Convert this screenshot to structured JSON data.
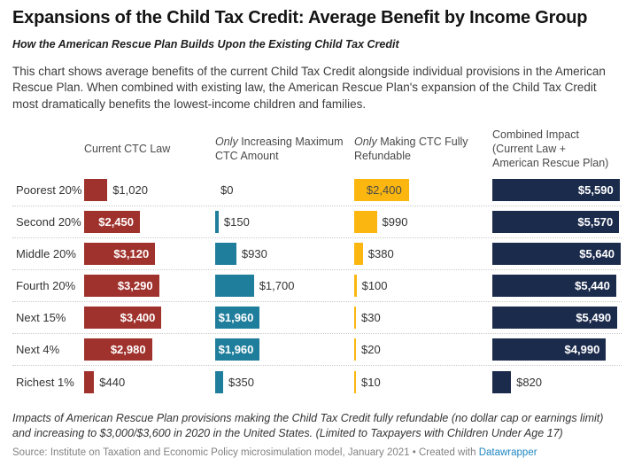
{
  "header": {
    "title": "Expansions of the Child Tax Credit: Average Benefit by Income Group",
    "subtitle": "How the American Rescue Plan Builds Upon the Existing Child Tax Credit",
    "description": "This chart shows average benefits of the current Child Tax Credit alongside individual provisions in the American Rescue Plan. When combined with existing law, the American Rescue Plan's expansion of the Child Tax Credit most dramatically benefits the lowest-income children and families."
  },
  "chart_data": {
    "type": "bar",
    "orientation": "horizontal",
    "grid": false,
    "value_prefix": "$",
    "xmax": 5640,
    "categories": [
      "Poorest 20%",
      "Second 20%",
      "Middle 20%",
      "Fourth 20%",
      "Next 15%",
      "Next 4%",
      "Richest 1%"
    ],
    "series": [
      {
        "name": "Current CTC Law",
        "slug": "current-ctc-law",
        "header_em": "",
        "header_text": "Current CTC Law",
        "color": "#a0322d",
        "label_style": "light",
        "values": [
          1020,
          2450,
          3120,
          3290,
          3400,
          2980,
          440
        ],
        "labels": [
          "$1,020",
          "$2,450",
          "$3,120",
          "$3,290",
          "$3,400",
          "$2,980",
          "$440"
        ]
      },
      {
        "name": "Only Increasing Maximum CTC Amount",
        "slug": "increase-max-ctc",
        "header_em": "Only ",
        "header_text": "Increasing Maximum CTC Amount",
        "color": "#1f7e9c",
        "label_style": "light",
        "values": [
          0,
          150,
          930,
          1700,
          1960,
          1960,
          350
        ],
        "labels": [
          "$0",
          "$150",
          "$930",
          "$1,700",
          "$1,960",
          "$1,960",
          "$350"
        ]
      },
      {
        "name": "Only Making CTC Fully Refundable",
        "slug": "fully-refundable",
        "header_em": "Only ",
        "header_text": "Making CTC Fully Refundable",
        "color": "#fbb70f",
        "label_style": "dark",
        "values": [
          2400,
          990,
          380,
          100,
          30,
          20,
          10
        ],
        "labels": [
          "$2,400",
          "$990",
          "$380",
          "$100",
          "$30",
          "$20",
          "$10"
        ]
      },
      {
        "name": "Combined Impact (Current Law + American Rescue Plan)",
        "slug": "combined-impact",
        "header_em": "",
        "header_text": "Combined Impact (Current Law + American Rescue Plan)",
        "color": "#1b2b4c",
        "label_style": "light",
        "values": [
          5590,
          5570,
          5640,
          5440,
          5490,
          4990,
          820
        ],
        "labels": [
          "$5,590",
          "$5,570",
          "$5,640",
          "$5,440",
          "$5,490",
          "$4,990",
          "$820"
        ]
      }
    ]
  },
  "footer": {
    "note": "Impacts of American Rescue Plan provisions making the Child Tax Credit fully refundable (no dollar cap or earnings limit) and increasing to $3,000/$3,600 in 2020 in the United States. (Limited to Taxpayers with Children Under Age 17)",
    "source_prefix": "Source: Institute on Taxation and Economic Policy microsimulation model, January 2021 • Created with ",
    "source_link": "Datawrapper",
    "link_color": "#1f87c2"
  }
}
